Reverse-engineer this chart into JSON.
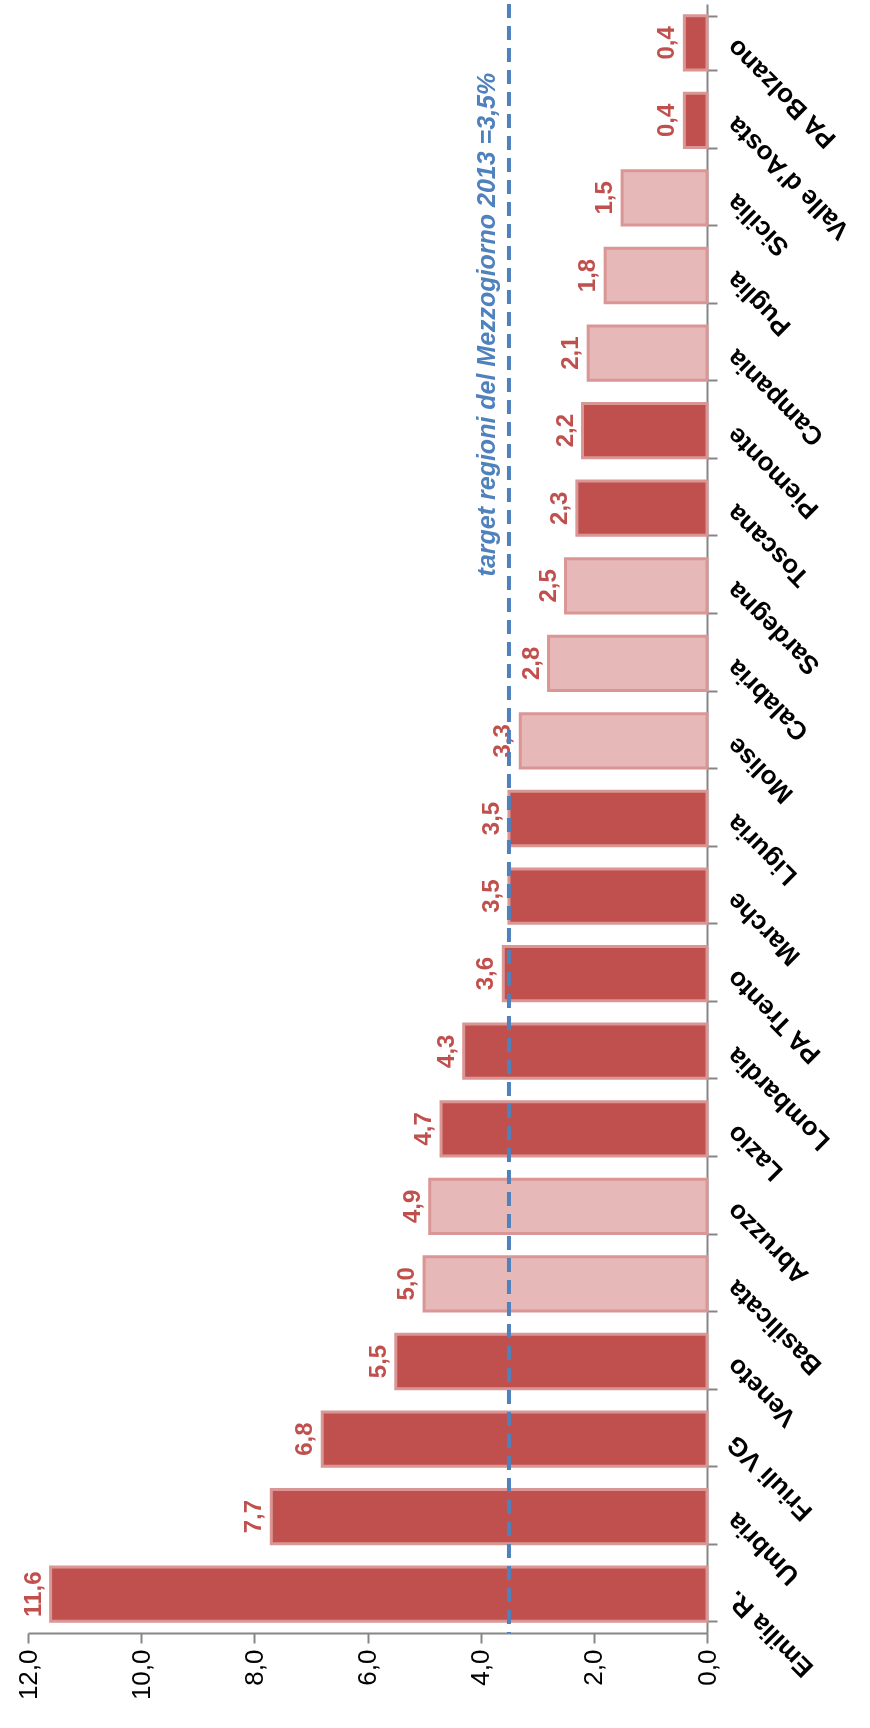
{
  "chart_data": {
    "type": "bar",
    "orientation": "horizontal",
    "categories": [
      "PA Bolzano",
      "Valle d'Aosta",
      "Sicilia",
      "Puglia",
      "Campania",
      "Piemonte",
      "Toscana",
      "Sardegna",
      "Calabria",
      "Molise",
      "Liguria",
      "Marche",
      "PA Trento",
      "Lombardia",
      "Lazio",
      "Abruzzo",
      "Basilicata",
      "Veneto",
      "Friuli VG",
      "Umbria",
      "Emilia R."
    ],
    "values": [
      0.4,
      0.4,
      1.5,
      1.8,
      2.1,
      2.2,
      2.3,
      2.5,
      2.8,
      3.3,
      3.5,
      3.5,
      3.6,
      4.3,
      4.7,
      4.9,
      5.0,
      5.5,
      6.8,
      7.7,
      11.6
    ],
    "colors": [
      "#c0504d",
      "#c0504d",
      "#e6b9b8",
      "#e6b9b8",
      "#e6b9b8",
      "#c0504d",
      "#c0504d",
      "#e6b9b8",
      "#e6b9b8",
      "#e6b9b8",
      "#c0504d",
      "#c0504d",
      "#c0504d",
      "#c0504d",
      "#c0504d",
      "#e6b9b8",
      "#e6b9b8",
      "#c0504d",
      "#c0504d",
      "#c0504d",
      "#c0504d"
    ],
    "value_labels": [
      "0,4",
      "0,4",
      "1,5",
      "1,8",
      "2,1",
      "2,2",
      "2,3",
      "2,5",
      "2,8",
      "3,3",
      "3,5",
      "3,5",
      "3,6",
      "4,3",
      "4,7",
      "4,9",
      "5,0",
      "5,5",
      "6,8",
      "7,7",
      "11,6"
    ],
    "xlim": [
      12,
      0
    ],
    "xticks": [
      {
        "value": 12,
        "label": "12,0"
      },
      {
        "value": 10,
        "label": "10,0"
      },
      {
        "value": 8,
        "label": "8,0"
      },
      {
        "value": 6,
        "label": "6,0"
      },
      {
        "value": 4,
        "label": "4,0"
      },
      {
        "value": 2,
        "label": "2,0"
      },
      {
        "value": 0,
        "label": "0,0"
      }
    ],
    "ref_lines": [
      {
        "axis": "x",
        "value": 3.5,
        "label": "target  regioni del Mezzogiorno 2013 =3,5%",
        "color": "#4f81bd",
        "line_style": "dashed"
      }
    ]
  }
}
